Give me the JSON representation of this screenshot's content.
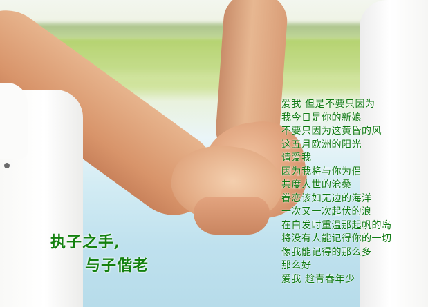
{
  "title": {
    "line1": "执子之手,",
    "line2": "与子偕老"
  },
  "poem": {
    "lines": [
      "爱我  但是不要只因为",
      "我今日是你的新娘",
      "不要只因为这黄昏的风",
      "这五月欧洲的阳光",
      "请爱我",
      "因为我将与你为侣",
      "共度人世的沧桑",
      "眷恋该如无边的海洋",
      "一次又一次起伏的浪",
      "在白发时重温那起帆的岛",
      "将没有人能记得你的一切",
      "像我能记得的那么多",
      "那么好",
      "爱我  趁青春年少"
    ]
  }
}
